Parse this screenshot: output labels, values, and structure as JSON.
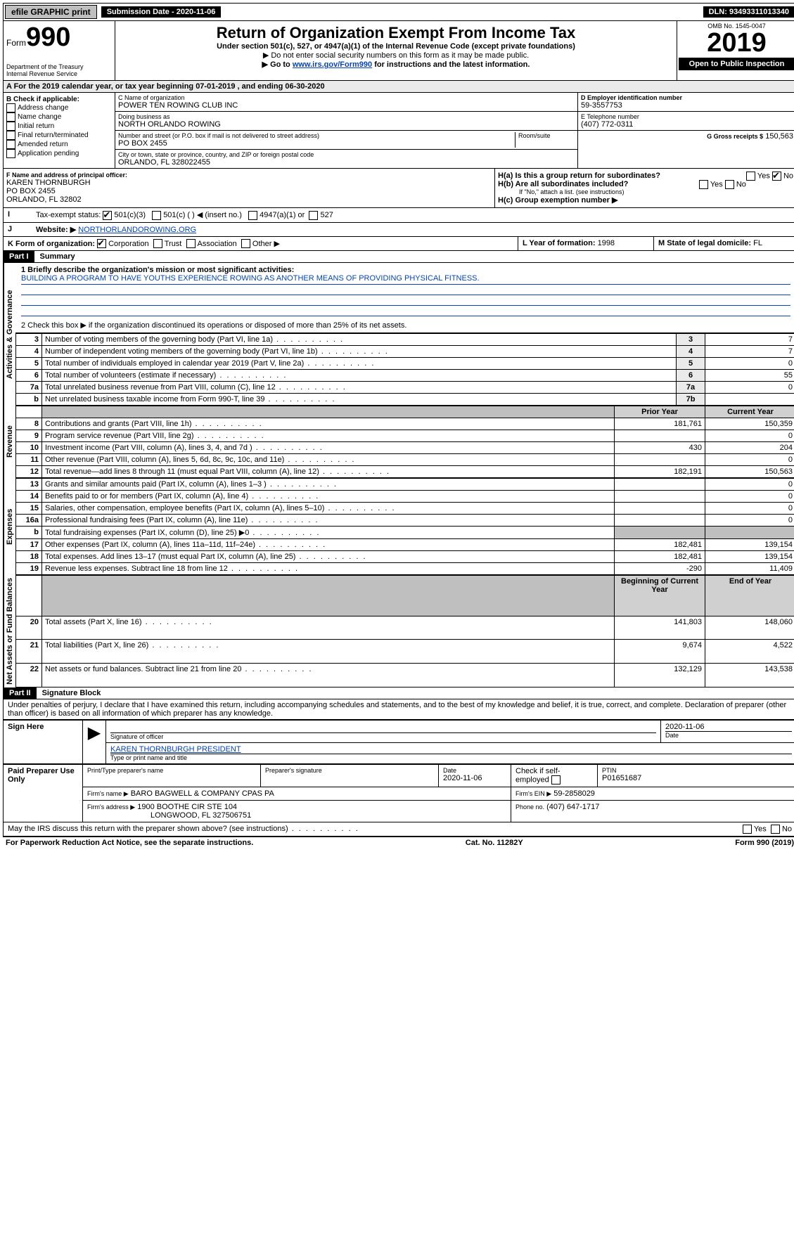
{
  "topbar": {
    "efile": "efile GRAPHIC print",
    "submission_label": "Submission Date - 2020-11-06",
    "dln": "DLN: 93493311013340"
  },
  "header": {
    "form_word": "Form",
    "form_num": "990",
    "dept": "Department of the Treasury",
    "irs": "Internal Revenue Service",
    "title": "Return of Organization Exempt From Income Tax",
    "subtitle": "Under section 501(c), 527, or 4947(a)(1) of the Internal Revenue Code (except private foundations)",
    "note1": "▶ Do not enter social security numbers on this form as it may be made public.",
    "note2_pre": "▶ Go to ",
    "note2_link": "www.irs.gov/Form990",
    "note2_post": " for instructions and the latest information.",
    "omb": "OMB No. 1545-0047",
    "year": "2019",
    "open": "Open to Public Inspection"
  },
  "rowA": {
    "text": "A For the 2019 calendar year, or tax year beginning 07-01-2019   , and ending 06-30-2020"
  },
  "boxB": {
    "label": "B Check if applicable:",
    "opts": [
      "Address change",
      "Name change",
      "Initial return",
      "Final return/terminated",
      "Amended return",
      "Application pending"
    ]
  },
  "boxC": {
    "name_label": "C Name of organization",
    "name": "POWER TEN ROWING CLUB INC",
    "dba_label": "Doing business as",
    "dba": "NORTH ORLANDO ROWING",
    "addr_label": "Number and street (or P.O. box if mail is not delivered to street address)",
    "room_label": "Room/suite",
    "addr": "PO BOX 2455",
    "city_label": "City or town, state or province, country, and ZIP or foreign postal code",
    "city": "ORLANDO, FL  328022455"
  },
  "boxD": {
    "label": "D Employer identification number",
    "val": "59-3557753"
  },
  "boxE": {
    "label": "E Telephone number",
    "val": "(407) 772-0311"
  },
  "boxG": {
    "label": "G Gross receipts $",
    "val": "150,563"
  },
  "boxF": {
    "label": "F Name and address of principal officer:",
    "name": "KAREN THORNBURGH",
    "addr1": "PO BOX 2455",
    "addr2": "ORLANDO, FL  32802"
  },
  "boxH": {
    "a": "H(a)  Is this a group return for subordinates?",
    "b": "H(b)  Are all subordinates included?",
    "b_note": "If \"No,\" attach a list. (see instructions)",
    "c": "H(c)  Group exemption number ▶",
    "yes": "Yes",
    "no": "No"
  },
  "boxI": {
    "label": "Tax-exempt status:",
    "o1": "501(c)(3)",
    "o2": "501(c) (   ) ◀ (insert no.)",
    "o3": "4947(a)(1) or",
    "o4": "527"
  },
  "boxJ": {
    "label": "Website: ▶",
    "val": "NORTHORLANDOROWING.ORG"
  },
  "boxK": {
    "label": "K Form of organization:",
    "opts": [
      "Corporation",
      "Trust",
      "Association",
      "Other ▶"
    ]
  },
  "boxL": {
    "label": "L Year of formation:",
    "val": "1998"
  },
  "boxM": {
    "label": "M State of legal domicile:",
    "val": "FL"
  },
  "part1": {
    "header": "Part I",
    "title": "Summary",
    "l1_label": "1  Briefly describe the organization's mission or most significant activities:",
    "l1_text": "BUILDING A PROGRAM TO HAVE YOUTHS EXPERIENCE ROWING AS ANOTHER MEANS OF PROVIDING PHYSICAL FITNESS.",
    "l2": "2   Check this box ▶        if the organization discontinued its operations or disposed of more than 25% of its net assets.",
    "vlabels": {
      "gov": "Activities & Governance",
      "rev": "Revenue",
      "exp": "Expenses",
      "net": "Net Assets or Fund Balances"
    },
    "govlines": [
      {
        "n": "3",
        "d": "Number of voting members of the governing body (Part VI, line 1a)",
        "b": "3",
        "v": "7"
      },
      {
        "n": "4",
        "d": "Number of independent voting members of the governing body (Part VI, line 1b)",
        "b": "4",
        "v": "7"
      },
      {
        "n": "5",
        "d": "Total number of individuals employed in calendar year 2019 (Part V, line 2a)",
        "b": "5",
        "v": "0"
      },
      {
        "n": "6",
        "d": "Total number of volunteers (estimate if necessary)",
        "b": "6",
        "v": "55"
      },
      {
        "n": "7a",
        "d": "Total unrelated business revenue from Part VIII, column (C), line 12",
        "b": "7a",
        "v": "0"
      },
      {
        "n": "b",
        "d": "Net unrelated business taxable income from Form 990-T, line 39",
        "b": "7b",
        "v": ""
      }
    ],
    "colhdr_prior": "Prior Year",
    "colhdr_current": "Current Year",
    "revlines": [
      {
        "n": "8",
        "d": "Contributions and grants (Part VIII, line 1h)",
        "p": "181,761",
        "c": "150,359"
      },
      {
        "n": "9",
        "d": "Program service revenue (Part VIII, line 2g)",
        "p": "",
        "c": "0"
      },
      {
        "n": "10",
        "d": "Investment income (Part VIII, column (A), lines 3, 4, and 7d )",
        "p": "430",
        "c": "204"
      },
      {
        "n": "11",
        "d": "Other revenue (Part VIII, column (A), lines 5, 6d, 8c, 9c, 10c, and 11e)",
        "p": "",
        "c": "0"
      },
      {
        "n": "12",
        "d": "Total revenue—add lines 8 through 11 (must equal Part VIII, column (A), line 12)",
        "p": "182,191",
        "c": "150,563"
      }
    ],
    "explines": [
      {
        "n": "13",
        "d": "Grants and similar amounts paid (Part IX, column (A), lines 1–3 )",
        "p": "",
        "c": "0"
      },
      {
        "n": "14",
        "d": "Benefits paid to or for members (Part IX, column (A), line 4)",
        "p": "",
        "c": "0"
      },
      {
        "n": "15",
        "d": "Salaries, other compensation, employee benefits (Part IX, column (A), lines 5–10)",
        "p": "",
        "c": "0"
      },
      {
        "n": "16a",
        "d": "Professional fundraising fees (Part IX, column (A), line 11e)",
        "p": "",
        "c": "0"
      },
      {
        "n": "b",
        "d": "Total fundraising expenses (Part IX, column (D), line 25) ▶0",
        "p": "SHADE",
        "c": "SHADE"
      },
      {
        "n": "17",
        "d": "Other expenses (Part IX, column (A), lines 11a–11d, 11f–24e)",
        "p": "182,481",
        "c": "139,154"
      },
      {
        "n": "18",
        "d": "Total expenses. Add lines 13–17 (must equal Part IX, column (A), line 25)",
        "p": "182,481",
        "c": "139,154"
      },
      {
        "n": "19",
        "d": "Revenue less expenses. Subtract line 18 from line 12",
        "p": "-290",
        "c": "11,409"
      }
    ],
    "colhdr_begin": "Beginning of Current Year",
    "colhdr_end": "End of Year",
    "netlines": [
      {
        "n": "20",
        "d": "Total assets (Part X, line 16)",
        "p": "141,803",
        "c": "148,060"
      },
      {
        "n": "21",
        "d": "Total liabilities (Part X, line 26)",
        "p": "9,674",
        "c": "4,522"
      },
      {
        "n": "22",
        "d": "Net assets or fund balances. Subtract line 21 from line 20",
        "p": "132,129",
        "c": "143,538"
      }
    ]
  },
  "part2": {
    "header": "Part II",
    "title": "Signature Block",
    "decl": "Under penalties of perjury, I declare that I have examined this return, including accompanying schedules and statements, and to the best of my knowledge and belief, it is true, correct, and complete. Declaration of preparer (other than officer) is based on all information of which preparer has any knowledge."
  },
  "sign": {
    "here": "Sign Here",
    "sig_label": "Signature of officer",
    "date_val": "2020-11-06",
    "date_label": "Date",
    "name": "KAREN THORNBURGH  PRESIDENT",
    "name_label": "Type or print name and title"
  },
  "paid": {
    "label": "Paid Preparer Use Only",
    "col1": "Print/Type preparer's name",
    "col2": "Preparer's signature",
    "col3_label": "Date",
    "col3_val": "2020-11-06",
    "col4": "Check         if self-employed",
    "col5_label": "PTIN",
    "col5_val": "P01651687",
    "firm_name_label": "Firm's name     ▶",
    "firm_name": "BARO BAGWELL & COMPANY CPAS PA",
    "firm_ein_label": "Firm's EIN ▶",
    "firm_ein": "59-2858029",
    "firm_addr_label": "Firm's address ▶",
    "firm_addr1": "1900 BOOTHE CIR STE 104",
    "firm_addr2": "LONGWOOD, FL  327506751",
    "phone_label": "Phone no.",
    "phone": "(407) 647-1717"
  },
  "footer": {
    "discuss": "May the IRS discuss this return with the preparer shown above? (see instructions)",
    "yes": "Yes",
    "no": "No",
    "pra": "For Paperwork Reduction Act Notice, see the separate instructions.",
    "cat": "Cat. No. 11282Y",
    "form": "Form 990 (2019)"
  }
}
